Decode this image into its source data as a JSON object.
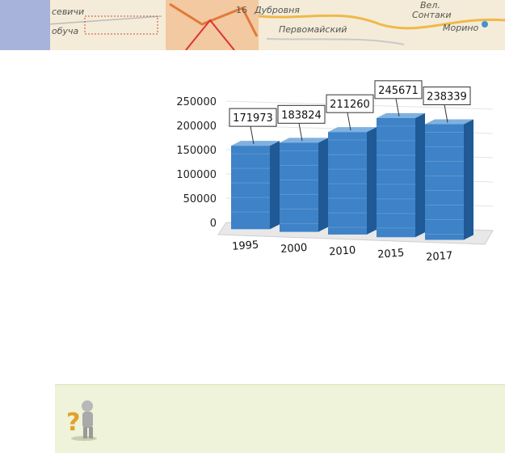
{
  "map_labels": {
    "top_left": "севичи",
    "bottom_left": "обуча",
    "road_label_1": "Дубровня",
    "road_label_2": "Первомайский",
    "road_number": "16",
    "village_1": "Вел.",
    "village_2": "Сонтаки",
    "village_3": "Морино"
  },
  "colors": {
    "bar_front": "#3e82c7",
    "bar_side": "#1f5a96",
    "bar_top": "#7fb1e0",
    "side_tab": "#a7b3db",
    "hint_bg": "#eef3d9"
  },
  "chart_data": {
    "type": "bar",
    "title": "",
    "xlabel": "",
    "ylabel": "",
    "categories": [
      "1995",
      "2000",
      "2010",
      "2015",
      "2017"
    ],
    "values": [
      171973,
      183824,
      211260,
      245671,
      238339
    ],
    "data_labels": [
      "171973",
      "183824",
      "211260",
      "245671",
      "238339"
    ],
    "ylim": [
      0,
      250000
    ],
    "yticks": [
      0,
      50000,
      100000,
      150000,
      200000,
      250000
    ],
    "ytick_labels": [
      "0",
      "50000",
      "100000",
      "150000",
      "200000",
      "250000"
    ],
    "grid": true,
    "style": "3d"
  }
}
